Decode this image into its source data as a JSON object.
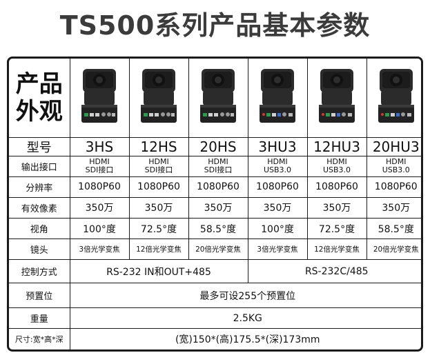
{
  "title": "TS500系列产品基本参数",
  "appearance_label_line1": "产品",
  "appearance_label_line2": "外观",
  "rows": {
    "model": {
      "label": "型号",
      "values": [
        "3HS",
        "12HS",
        "20HS",
        "3HU3",
        "12HU3",
        "20HU3"
      ]
    },
    "interface": {
      "label": "输出接口",
      "values": [
        [
          "HDMI",
          "SDI接口"
        ],
        [
          "HDMI",
          "SDI接口"
        ],
        [
          "HDMI",
          "SDI接口"
        ],
        [
          "HDMI",
          "USB3.0"
        ],
        [
          "HDMI",
          "USB3.0"
        ],
        [
          "HDMI",
          "USB3.0"
        ]
      ]
    },
    "resolution": {
      "label": "分辨率",
      "values": [
        "1080P60",
        "1080P60",
        "1080P60",
        "1080P60",
        "1080P60",
        "1080P60"
      ]
    },
    "pixels": {
      "label": "有效像素",
      "values": [
        "350万",
        "350万",
        "350万",
        "350万",
        "350万",
        "350万"
      ]
    },
    "angle": {
      "label": "视角",
      "values": [
        "100°度",
        "72.5°度",
        "58.5°度",
        "100°度",
        "72.5°度",
        "58.5°度"
      ]
    },
    "lens": {
      "label": "镜头",
      "values": [
        "3倍光学变焦",
        "12倍光学变焦",
        "20倍光学变焦",
        "3倍光学变焦",
        "12倍光学变焦",
        "20倍光学变焦"
      ]
    },
    "control": {
      "label": "控制方式",
      "group1": "RS-232 IN和OUT+485",
      "group2": "RS-232C/485"
    },
    "preset": {
      "label": "预置位",
      "value": "最多可设255个预置位"
    },
    "weight": {
      "label": "重量",
      "value": "2.5KG"
    },
    "size": {
      "label": "尺寸:宽*高*深",
      "value": "(宽)150*(高)175.5*(深)173mm"
    }
  },
  "colors": {
    "border": "#1a1a1a",
    "title": "#3b3b3b",
    "camera": "#2b2b2b"
  }
}
